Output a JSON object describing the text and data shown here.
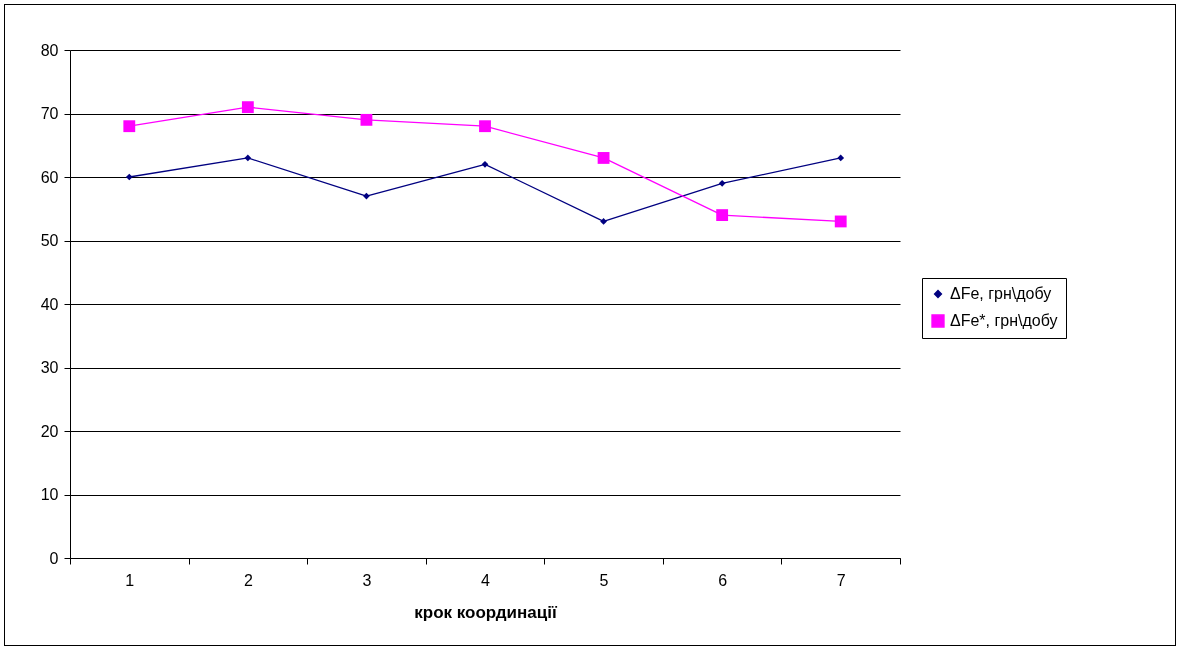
{
  "chart_data": {
    "type": "line",
    "xlabel": "крок координації",
    "categories": [
      "1",
      "2",
      "3",
      "4",
      "5",
      "6",
      "7"
    ],
    "series": [
      {
        "name": "ΔFe, грн\\добу",
        "color": "#000080",
        "marker": "diamond",
        "values": [
          60,
          63,
          57,
          62,
          53,
          59,
          63
        ]
      },
      {
        "name": "ΔFe*, грн\\добу",
        "color": "#ff00ff",
        "marker": "square",
        "values": [
          68,
          71,
          69,
          68,
          63,
          54,
          53
        ]
      }
    ],
    "ylim": [
      0,
      80
    ],
    "yticks": [
      0,
      10,
      20,
      30,
      40,
      50,
      60,
      70,
      80
    ],
    "grid": "y",
    "legend": "right"
  }
}
